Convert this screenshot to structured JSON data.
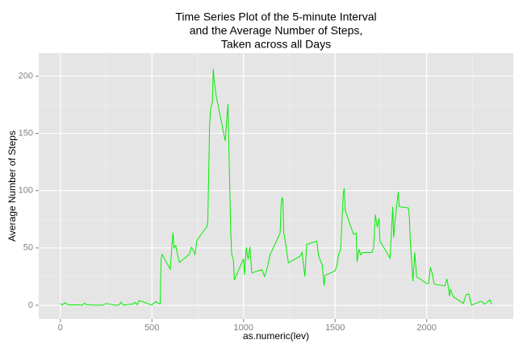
{
  "chart_data": {
    "type": "line",
    "title": [
      "Time Series Plot of the 5-minute Interval",
      "and the Average Number of Steps,",
      "Taken across all Days"
    ],
    "x_label": "as.numeric(lev)",
    "y_label": "Average Number of Steps",
    "xlim": [
      -118,
      2473
    ],
    "ylim": [
      -12,
      220
    ],
    "xticks": [
      0,
      500,
      1000,
      1500,
      2000
    ],
    "yticks": [
      0,
      50,
      100,
      150,
      200
    ],
    "x_minor_ticks": [
      250,
      750,
      1250,
      1750,
      2250
    ],
    "y_minor_ticks": [
      25,
      75,
      125,
      175
    ],
    "grid": true,
    "series": [
      {
        "color": "#00ee00",
        "x": [
          0,
          10,
          25,
          35,
          50,
          100,
          110,
          120,
          130,
          145,
          150,
          200,
          230,
          250,
          300,
          320,
          330,
          345,
          400,
          410,
          420,
          430,
          440,
          450,
          500,
          505,
          515,
          520,
          530,
          545,
          550,
          555,
          600,
          610,
          615,
          620,
          630,
          640,
          650,
          700,
          705,
          715,
          720,
          735,
          745,
          750,
          800,
          805,
          815,
          820,
          830,
          835,
          840,
          850,
          900,
          915,
          930,
          935,
          945,
          950,
          1000,
          1005,
          1015,
          1025,
          1035,
          1045,
          1100,
          1115,
          1130,
          1145,
          1200,
          1205,
          1210,
          1215,
          1220,
          1230,
          1245,
          1300,
          1310,
          1320,
          1335,
          1345,
          1400,
          1410,
          1430,
          1440,
          1445,
          1500,
          1510,
          1520,
          1530,
          1545,
          1550,
          1555,
          1600,
          1615,
          1620,
          1630,
          1640,
          1650,
          1700,
          1710,
          1720,
          1730,
          1740,
          1745,
          1800,
          1815,
          1820,
          1830,
          1845,
          1850,
          1900,
          1905,
          1910,
          1925,
          1935,
          1945,
          2000,
          2010,
          2020,
          2030,
          2040,
          2050,
          2100,
          2110,
          2115,
          2125,
          2130,
          2145,
          2200,
          2215,
          2230,
          2245,
          2300,
          2315,
          2330,
          2345,
          2355
        ],
        "values": [
          1.7,
          0.1,
          2.1,
          0.9,
          0.3,
          0.3,
          0.2,
          0,
          1.8,
          0.4,
          0.3,
          0,
          0,
          1.5,
          0,
          0.2,
          2.6,
          0.1,
          1.2,
          2.6,
          0.3,
          4.1,
          3.5,
          3.1,
          0,
          1.6,
          2.2,
          3.3,
          2.1,
          1.1,
          39.5,
          44.5,
          31.5,
          53.8,
          63.5,
          50,
          52.2,
          44.1,
          37.4,
          44,
          44.7,
          50.5,
          49.9,
          44.3,
          56.2,
          57.6,
          68.6,
          73.4,
          157.5,
          171.2,
          177.3,
          206.2,
          195.9,
          183.4,
          143.5,
          175.6,
          66.2,
          45.2,
          38.8,
          22,
          40.6,
          26.5,
          50.4,
          40,
          51,
          28.3,
          31,
          25,
          33,
          44,
          63,
          87,
          94,
          92,
          63,
          54,
          37,
          42,
          43,
          46,
          25,
          53,
          56,
          43,
          35,
          17,
          26,
          30,
          35,
          45,
          48,
          98,
          102,
          83,
          62,
          63,
          38,
          49,
          44,
          46,
          46,
          50,
          79,
          68,
          76,
          56,
          41,
          86,
          59,
          78,
          99,
          86,
          85,
          78,
          58,
          21,
          46,
          25,
          19,
          19,
          33,
          28,
          19,
          18,
          17,
          23,
          19,
          8,
          14,
          7.6,
          1.6,
          9.3,
          9.8,
          0.1,
          3.6,
          0.8,
          2.6,
          4.7,
          1.1
        ]
      }
    ]
  }
}
